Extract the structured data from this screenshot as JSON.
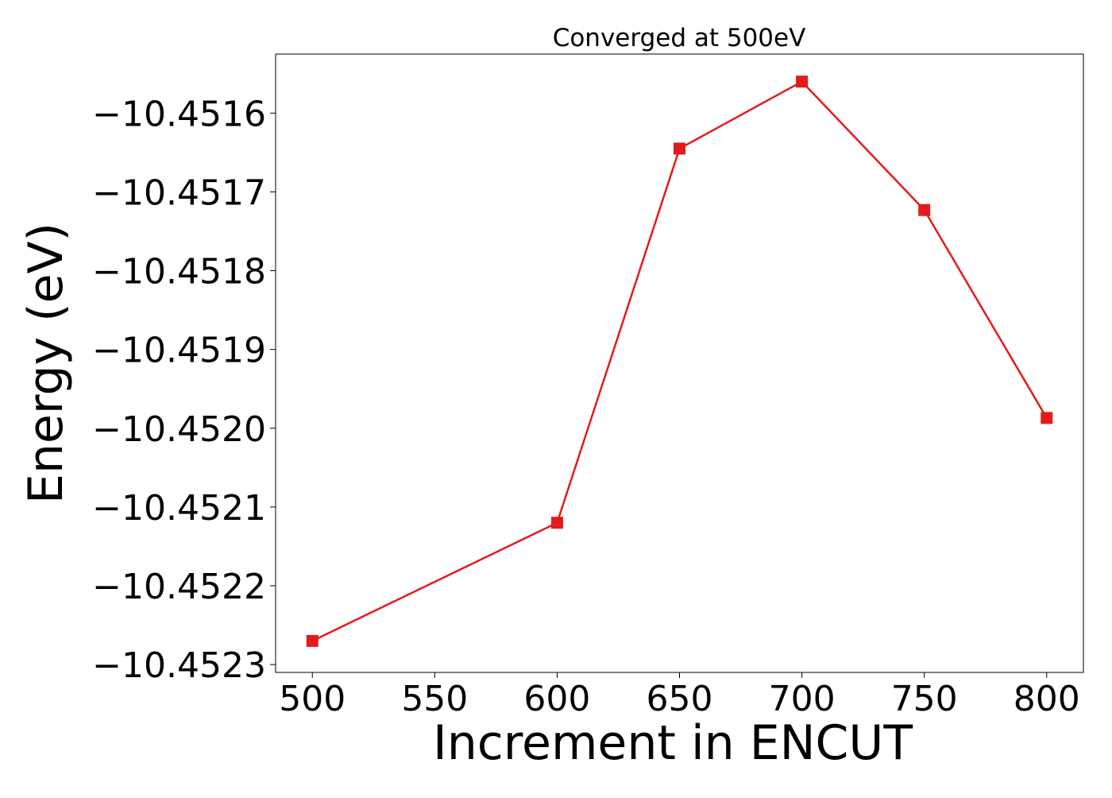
{
  "chart_data": {
    "type": "line",
    "title": "Converged at 500eV",
    "xlabel": "Increment in ENCUT",
    "ylabel": "Energy (eV)",
    "x": [
      500,
      600,
      650,
      700,
      750,
      800
    ],
    "series": [
      {
        "name": "",
        "color": "#e41a1c",
        "marker": "square",
        "values": [
          -10.45227,
          -10.45212,
          -10.451645,
          -10.45156,
          -10.451723,
          -10.451987
        ]
      }
    ],
    "xlim": [
      485,
      815
    ],
    "ylim": [
      -10.45231,
      -10.451525
    ],
    "xticks": [
      500,
      550,
      600,
      650,
      700,
      750,
      800
    ],
    "xtick_labels": [
      "500",
      "550",
      "600",
      "650",
      "700",
      "750",
      "800"
    ],
    "yticks": [
      -10.4516,
      -10.4517,
      -10.4518,
      -10.4519,
      -10.452,
      -10.4521,
      -10.4522,
      -10.4523
    ],
    "ytick_labels": [
      "−10.4516",
      "−10.4517",
      "−10.4518",
      "−10.4519",
      "−10.4520",
      "−10.4521",
      "−10.4522",
      "−10.4523"
    ],
    "grid": false,
    "legend": "none"
  }
}
